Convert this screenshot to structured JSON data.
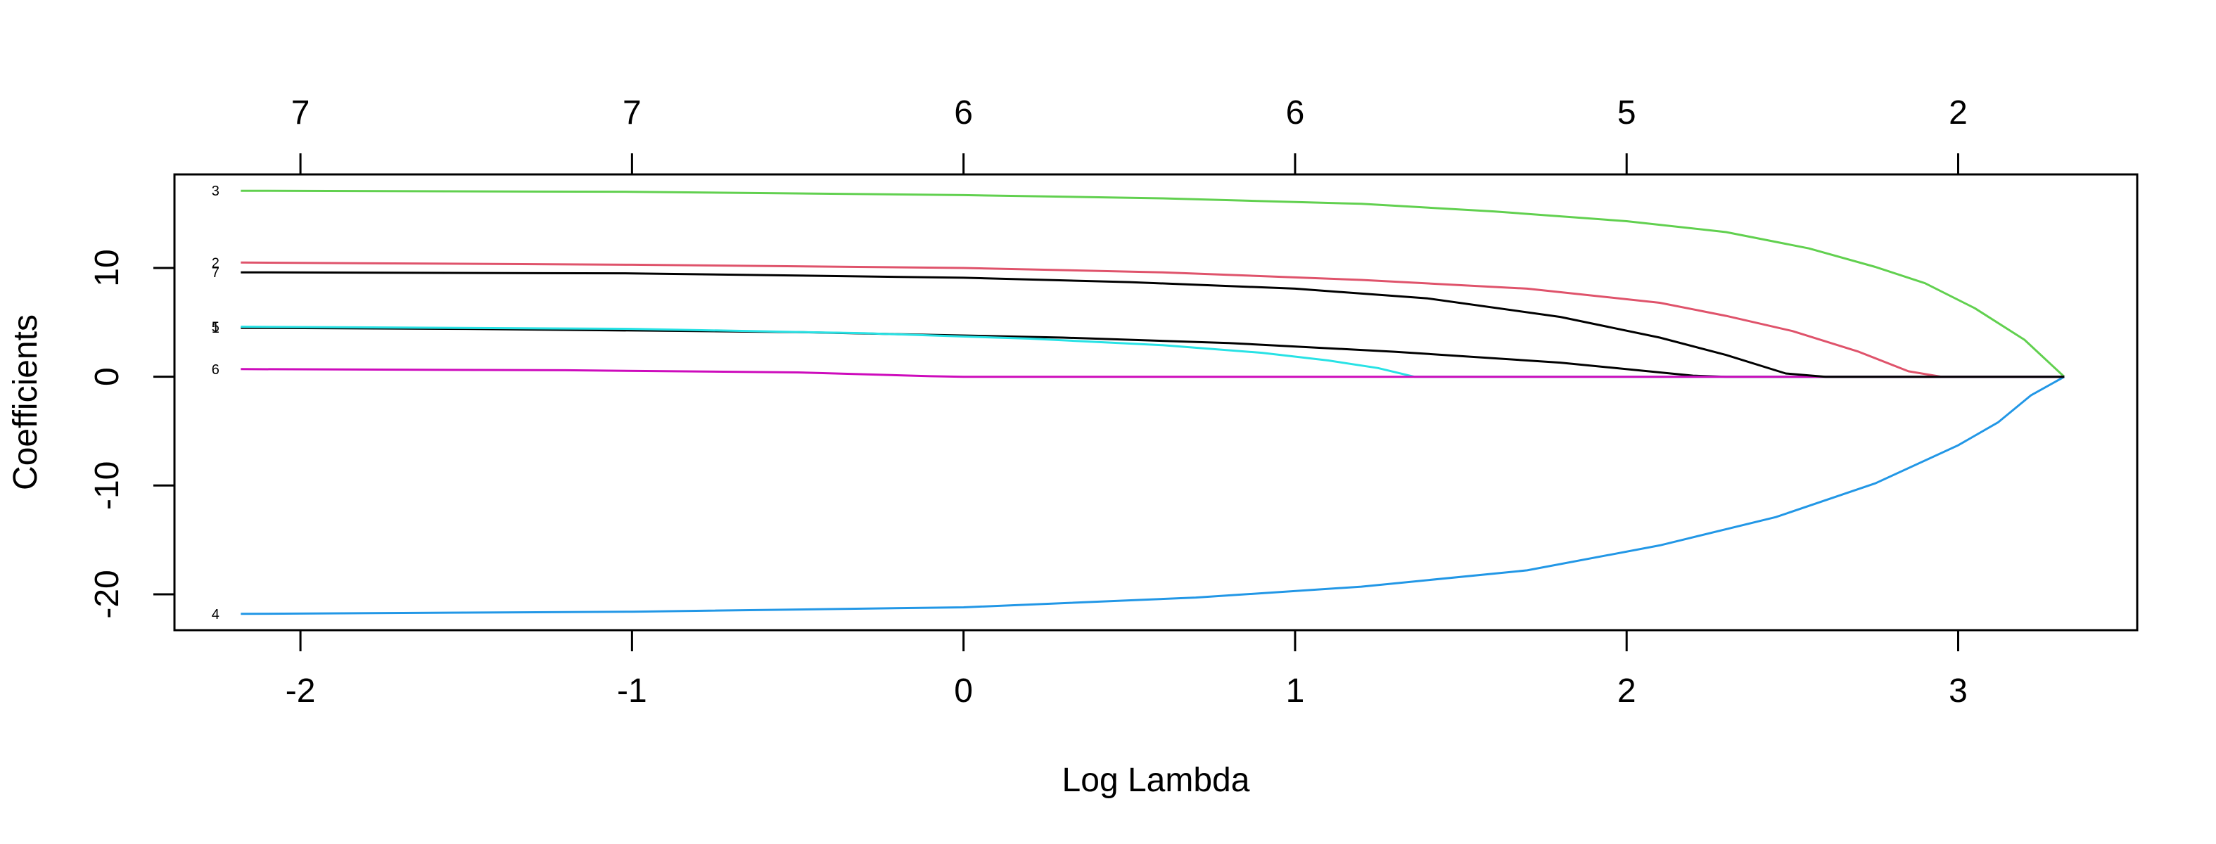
{
  "chart_data": {
    "type": "line",
    "title": "",
    "xlabel": "Log Lambda",
    "ylabel": "Coefficients",
    "xlim": [
      -2.38,
      3.54
    ],
    "ylim": [
      -23.3,
      18.6
    ],
    "grid": false,
    "legend": "none",
    "x_ticks": [
      -2,
      -1,
      0,
      1,
      2,
      3
    ],
    "x_tick_labels": [
      "-2",
      "-1",
      "0",
      "1",
      "2",
      "3"
    ],
    "y_ticks": [
      -20,
      -10,
      0,
      10
    ],
    "y_tick_labels": [
      "-20",
      "-10",
      "0",
      "10"
    ],
    "top_ticks": [
      -2,
      -1,
      0,
      1,
      2,
      3
    ],
    "top_tick_labels": [
      "7",
      "7",
      "6",
      "6",
      "5",
      "2"
    ],
    "series": [
      {
        "label": "1",
        "color": "#000000",
        "points": [
          [
            -2.18,
            4.5
          ],
          [
            -1.5,
            4.4
          ],
          [
            -0.5,
            4.1
          ],
          [
            0.3,
            3.6
          ],
          [
            0.8,
            3.1
          ],
          [
            1.3,
            2.3
          ],
          [
            1.8,
            1.3
          ],
          [
            2.2,
            0.1
          ],
          [
            2.3,
            0
          ],
          [
            3.32,
            0
          ]
        ]
      },
      {
        "label": "2",
        "color": "#DF536B",
        "points": [
          [
            -2.18,
            10.5
          ],
          [
            -1.0,
            10.3
          ],
          [
            0.0,
            10.0
          ],
          [
            0.6,
            9.6
          ],
          [
            1.2,
            8.9
          ],
          [
            1.7,
            8.1
          ],
          [
            2.1,
            6.8
          ],
          [
            2.3,
            5.6
          ],
          [
            2.5,
            4.2
          ],
          [
            2.7,
            2.3
          ],
          [
            2.85,
            0.5
          ],
          [
            2.95,
            0
          ],
          [
            3.32,
            0
          ]
        ]
      },
      {
        "label": "3",
        "color": "#61D04F",
        "points": [
          [
            -2.18,
            17.1
          ],
          [
            -1.0,
            17.0
          ],
          [
            0.0,
            16.7
          ],
          [
            0.6,
            16.4
          ],
          [
            1.2,
            15.9
          ],
          [
            1.6,
            15.2
          ],
          [
            2.0,
            14.3
          ],
          [
            2.3,
            13.3
          ],
          [
            2.55,
            11.8
          ],
          [
            2.75,
            10.1
          ],
          [
            2.9,
            8.6
          ],
          [
            3.05,
            6.3
          ],
          [
            3.2,
            3.4
          ],
          [
            3.32,
            0
          ]
        ]
      },
      {
        "label": "4",
        "color": "#2297E6",
        "points": [
          [
            -2.18,
            -21.8
          ],
          [
            -1.0,
            -21.6
          ],
          [
            0.0,
            -21.2
          ],
          [
            0.7,
            -20.3
          ],
          [
            1.2,
            -19.3
          ],
          [
            1.7,
            -17.8
          ],
          [
            2.1,
            -15.5
          ],
          [
            2.45,
            -12.9
          ],
          [
            2.75,
            -9.8
          ],
          [
            3.0,
            -6.3
          ],
          [
            3.12,
            -4.2
          ],
          [
            3.22,
            -1.7
          ],
          [
            3.32,
            0
          ]
        ]
      },
      {
        "label": "5",
        "color": "#28E2E5",
        "points": [
          [
            -2.18,
            4.6
          ],
          [
            -1.0,
            4.4
          ],
          [
            -0.3,
            4.0
          ],
          [
            0.2,
            3.5
          ],
          [
            0.6,
            2.9
          ],
          [
            0.9,
            2.2
          ],
          [
            1.1,
            1.5
          ],
          [
            1.25,
            0.8
          ],
          [
            1.36,
            0
          ],
          [
            3.32,
            0
          ]
        ]
      },
      {
        "label": "6",
        "color": "#CD0BBC",
        "points": [
          [
            -2.18,
            0.7
          ],
          [
            -1.2,
            0.6
          ],
          [
            -0.5,
            0.4
          ],
          [
            -0.1,
            0.05
          ],
          [
            0.0,
            0
          ],
          [
            3.32,
            0
          ]
        ]
      },
      {
        "label": "7",
        "color": "#000000",
        "points": [
          [
            -2.18,
            9.6
          ],
          [
            -1.0,
            9.5
          ],
          [
            0.0,
            9.1
          ],
          [
            0.5,
            8.7
          ],
          [
            1.0,
            8.1
          ],
          [
            1.4,
            7.2
          ],
          [
            1.8,
            5.5
          ],
          [
            2.1,
            3.6
          ],
          [
            2.3,
            2.0
          ],
          [
            2.48,
            0.3
          ],
          [
            2.6,
            0
          ],
          [
            3.32,
            0
          ]
        ]
      }
    ]
  }
}
